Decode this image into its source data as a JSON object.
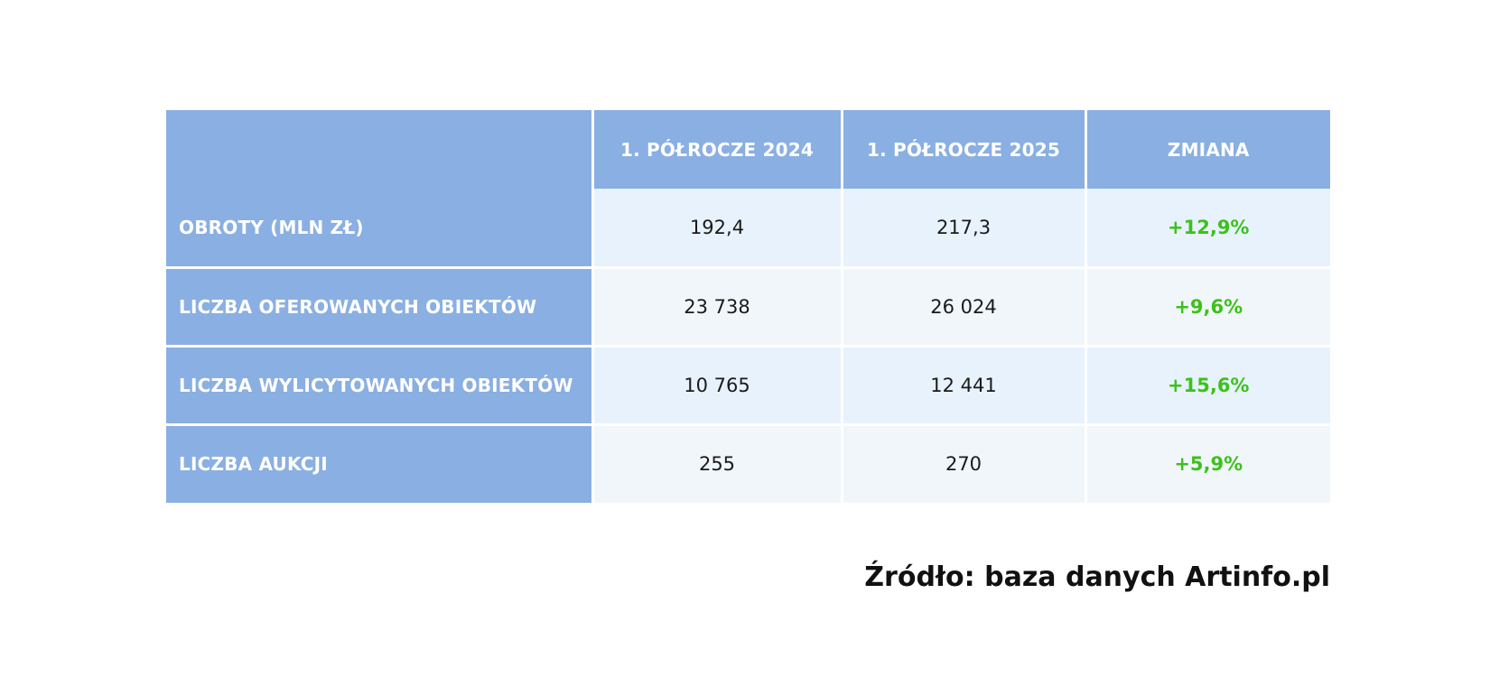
{
  "colors": {
    "header_bg": "#8aafe2",
    "row_odd_bg": "#e8f2fd",
    "row_even_bg": "#f1f6fb",
    "positive_change": "#3cc21a"
  },
  "chart_data": {
    "type": "table",
    "columns": [
      "",
      "1. PÓŁROCZE 2024",
      "1. PÓŁROCZE 2025",
      "ZMIANA"
    ],
    "rows": [
      {
        "label": "OBROTY (MLN ZŁ)",
        "h1_2024": "192,4",
        "h1_2025": "217,3",
        "change": "+12,9%"
      },
      {
        "label": "LICZBA OFEROWANYCH OBIEKTÓW",
        "h1_2024": "23 738",
        "h1_2025": "26 024",
        "change": "+9,6%"
      },
      {
        "label": "LICZBA WYLICYTOWANYCH OBIEKTÓW",
        "h1_2024": "10 765",
        "h1_2025": "12 441",
        "change": "+15,6%"
      },
      {
        "label": "LICZBA AUKCJI",
        "h1_2024": "255",
        "h1_2025": "270",
        "change": "+5,9%"
      }
    ],
    "source": "Źródło: baza danych Artinfo.pl"
  }
}
